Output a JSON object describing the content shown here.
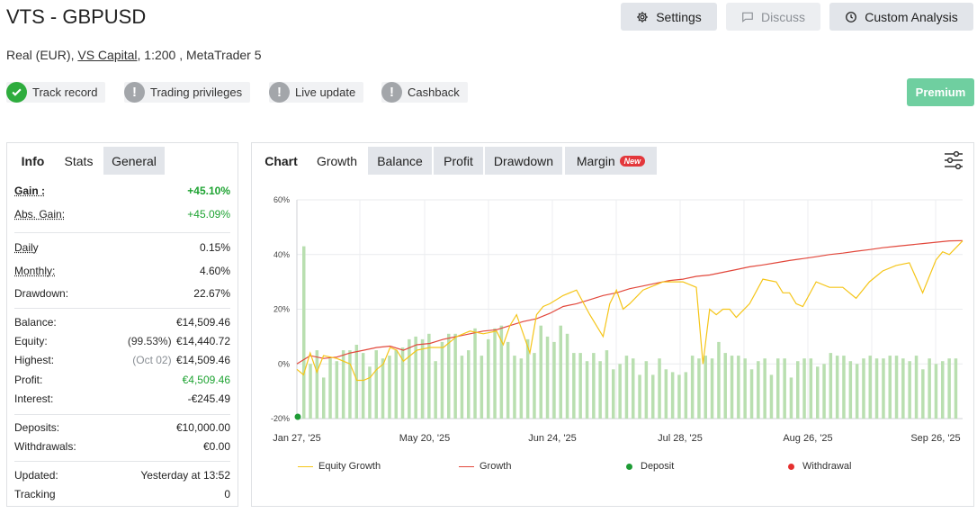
{
  "header": {
    "title": "VTS - GBPUSD",
    "buttons": {
      "settings": "Settings",
      "discuss": "Discuss",
      "custom_analysis": "Custom Analysis"
    },
    "subtitle": {
      "account_type": "Real (EUR),",
      "broker": "VS Capital",
      "details": ", 1:200 , MetaTrader 5"
    }
  },
  "badges": [
    {
      "label": "Track record",
      "status": "verified"
    },
    {
      "label": "Trading privileges",
      "status": "warning"
    },
    {
      "label": "Live update",
      "status": "warning"
    },
    {
      "label": "Cashback",
      "status": "warning"
    }
  ],
  "premium_label": "Premium",
  "left_tabs": [
    "Info",
    "Stats",
    "General"
  ],
  "stats": {
    "gain": {
      "label": "Gain :",
      "value": "+45.10%"
    },
    "abs_gain": {
      "label": "Abs. Gain:",
      "value": "+45.09%"
    },
    "daily": {
      "label": "Daily",
      "value": "0.15%"
    },
    "monthly": {
      "label": "Monthly:",
      "value": "4.60%"
    },
    "drawdown": {
      "label": "Drawdown:",
      "value": "22.67%"
    },
    "balance": {
      "label": "Balance:",
      "value": "€14,509.46"
    },
    "equity": {
      "label": "Equity:",
      "note": "(99.53%)",
      "value": "€14,440.72"
    },
    "highest": {
      "label": "Highest:",
      "note": "(Oct 02)",
      "value": "€14,509.46"
    },
    "profit": {
      "label": "Profit:",
      "value": "€4,509.46"
    },
    "interest": {
      "label": "Interest:",
      "value": "-€245.49"
    },
    "deposits": {
      "label": "Deposits:",
      "value": "€10,000.00"
    },
    "withdrawals": {
      "label": "Withdrawals:",
      "value": "€0.00"
    },
    "updated": {
      "label": "Updated:",
      "value": "Yesterday at 13:52"
    },
    "tracking": {
      "label": "Tracking",
      "value": "0"
    }
  },
  "chart_tabs": {
    "chart": "Chart",
    "growth": "Growth",
    "balance": "Balance",
    "profit": "Profit",
    "drawdown": "Drawdown",
    "margin": "Margin",
    "new_badge": "New"
  },
  "colors": {
    "growth": "#e2483c",
    "equity_growth": "#f5c518",
    "bars": "#b9dfb0",
    "deposit": "#1e9b35",
    "withdrawal": "#e5302f"
  },
  "chart_data": {
    "type": "line",
    "x_tick_labels": [
      "Jan 27, '25",
      "May 20, '25",
      "Jun 24, '25",
      "Jul 28, '25",
      "Aug 26, '25",
      "Sep 26, '25"
    ],
    "y_tick_labels": [
      "60%",
      "40%",
      "20%",
      "0%",
      "-20%"
    ],
    "ylim": [
      -20,
      60
    ],
    "grid": true,
    "legend_position": "bottom",
    "legend": [
      "Equity Growth",
      "Growth",
      "Deposit",
      "Withdrawal"
    ],
    "series": [
      {
        "name": "Growth",
        "x": [
          0,
          2,
          4,
          6,
          8,
          10,
          12,
          14,
          16,
          18,
          20,
          22,
          24,
          26,
          28,
          30,
          32,
          34,
          36,
          38,
          40,
          42,
          44,
          46,
          48,
          50,
          52,
          54,
          56,
          58,
          60,
          62,
          64,
          66,
          68,
          70,
          72,
          74,
          76,
          78,
          80,
          82,
          84,
          86,
          88,
          90,
          92,
          94,
          96,
          98,
          100
        ],
        "y": [
          0,
          3,
          2,
          2.5,
          4,
          5,
          6,
          6.5,
          5,
          7,
          7.5,
          9,
          10,
          11,
          12,
          12.5,
          14,
          15.5,
          16.5,
          18.5,
          21,
          22,
          23.5,
          25,
          26,
          27.5,
          28.5,
          29.5,
          30.5,
          31,
          32,
          32.5,
          33.5,
          34.5,
          35.5,
          36.2,
          37,
          37.8,
          38.5,
          39.2,
          40,
          40.5,
          41.2,
          41.8,
          42.5,
          43,
          43.5,
          44,
          44.5,
          45,
          45.1
        ]
      },
      {
        "name": "Equity Growth",
        "x": [
          0,
          1,
          2,
          3,
          4,
          6,
          8,
          9,
          10,
          11,
          12,
          13,
          14,
          15,
          16,
          18,
          20,
          22,
          24,
          26,
          28,
          30,
          31,
          32,
          33,
          34,
          35,
          36,
          37,
          38,
          40,
          42,
          44,
          46,
          47,
          48,
          49,
          50,
          52,
          54,
          55,
          56,
          58,
          60,
          61,
          62,
          63,
          64,
          65,
          66,
          68,
          70,
          72,
          73,
          74,
          75,
          76,
          78,
          80,
          82,
          84,
          85,
          86,
          88,
          90,
          92,
          94,
          96,
          97,
          98,
          100
        ],
        "y": [
          -2,
          -4,
          4,
          -3,
          3,
          2,
          0,
          -6,
          -6,
          -5,
          -2,
          0,
          6,
          5,
          1,
          5,
          6,
          6,
          10,
          12,
          11,
          12,
          7,
          14,
          18,
          11,
          4,
          18,
          21,
          22,
          25,
          27,
          18,
          10,
          22,
          27,
          20,
          22,
          27,
          29,
          30,
          30,
          30,
          28,
          0,
          20,
          18,
          20,
          20,
          17,
          22,
          31,
          30,
          26,
          26,
          22,
          21,
          30,
          28,
          28,
          24,
          27,
          30,
          34,
          36,
          37,
          26,
          38,
          41,
          40,
          45
        ]
      }
    ],
    "bars": [
      43,
      0,
      5,
      -5,
      2,
      1,
      5,
      5,
      7,
      4,
      -1,
      5,
      2,
      3,
      5,
      6,
      9,
      10,
      9,
      11,
      1,
      8,
      11,
      11,
      3,
      5,
      13,
      3,
      9,
      13,
      14,
      8,
      3,
      2,
      9,
      4,
      14,
      10,
      8,
      14,
      11,
      4,
      4,
      1,
      4,
      1,
      5,
      -2,
      0,
      3,
      2,
      -4,
      1,
      -4,
      2,
      -2,
      -3,
      -4,
      -3,
      3,
      2,
      3,
      2,
      8,
      4,
      3,
      3,
      2,
      -2,
      1,
      2,
      -4,
      2,
      2,
      -5,
      1,
      2,
      2,
      -1,
      0,
      4,
      3,
      3,
      1,
      0,
      2,
      3,
      2,
      2,
      3,
      3,
      2,
      1,
      3,
      -2,
      2,
      0,
      1,
      2,
      2
    ]
  }
}
